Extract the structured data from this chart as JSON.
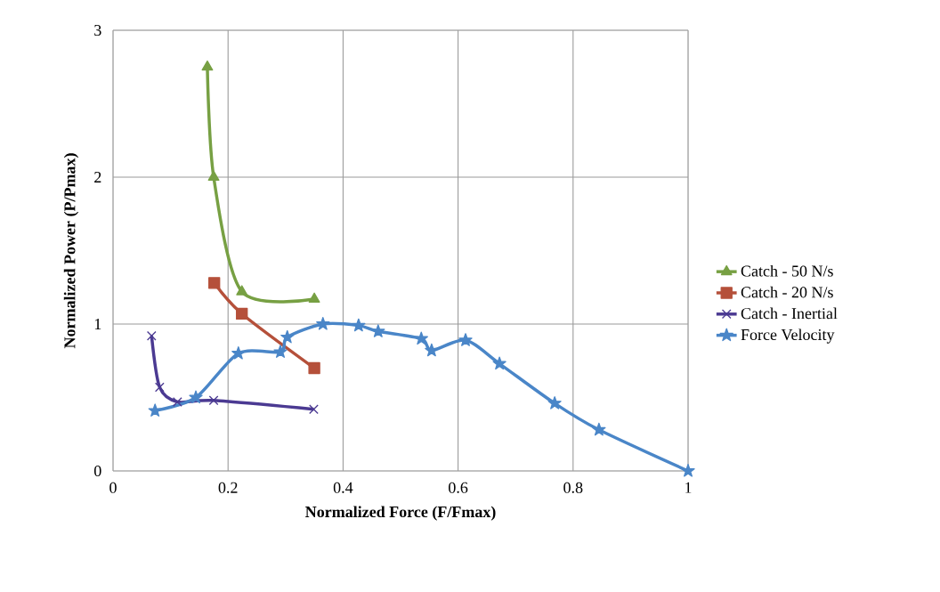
{
  "chart_data": {
    "type": "line",
    "xlabel": "Normalized Force (F/Fmax)",
    "ylabel": "Normalized Power (P/Pmax)",
    "xlim": [
      0,
      1
    ],
    "ylim": [
      0,
      3
    ],
    "xticks": [
      0,
      0.2,
      0.4,
      0.6,
      0.8,
      1
    ],
    "yticks": [
      0,
      1,
      2,
      3
    ],
    "grid": true,
    "legend": "right",
    "series": [
      {
        "name": "Catch - 50 N/s",
        "color": "#77a043",
        "marker": "triangle",
        "x": [
          0.164,
          0.175,
          0.224,
          0.35
        ],
        "values": [
          2.75,
          2.0,
          1.22,
          1.17
        ]
      },
      {
        "name": "Catch - 20 N/s",
        "color": "#b5503a",
        "marker": "square",
        "x": [
          0.176,
          0.224,
          0.35
        ],
        "values": [
          1.28,
          1.07,
          0.7
        ]
      },
      {
        "name": "Catch - Inertial",
        "color": "#4b3a92",
        "marker": "cross",
        "x": [
          0.067,
          0.081,
          0.112,
          0.175,
          0.349
        ],
        "values": [
          0.92,
          0.57,
          0.47,
          0.48,
          0.42
        ]
      },
      {
        "name": "Force Velocity",
        "color": "#4a86c8",
        "marker": "star",
        "x": [
          0.073,
          0.144,
          0.218,
          0.291,
          0.303,
          0.365,
          0.427,
          0.461,
          0.536,
          0.554,
          0.613,
          0.672,
          0.768,
          0.845,
          1.0
        ],
        "values": [
          0.41,
          0.5,
          0.8,
          0.81,
          0.91,
          1.0,
          0.99,
          0.95,
          0.9,
          0.82,
          0.89,
          0.73,
          0.46,
          0.28,
          0.0
        ]
      }
    ]
  }
}
